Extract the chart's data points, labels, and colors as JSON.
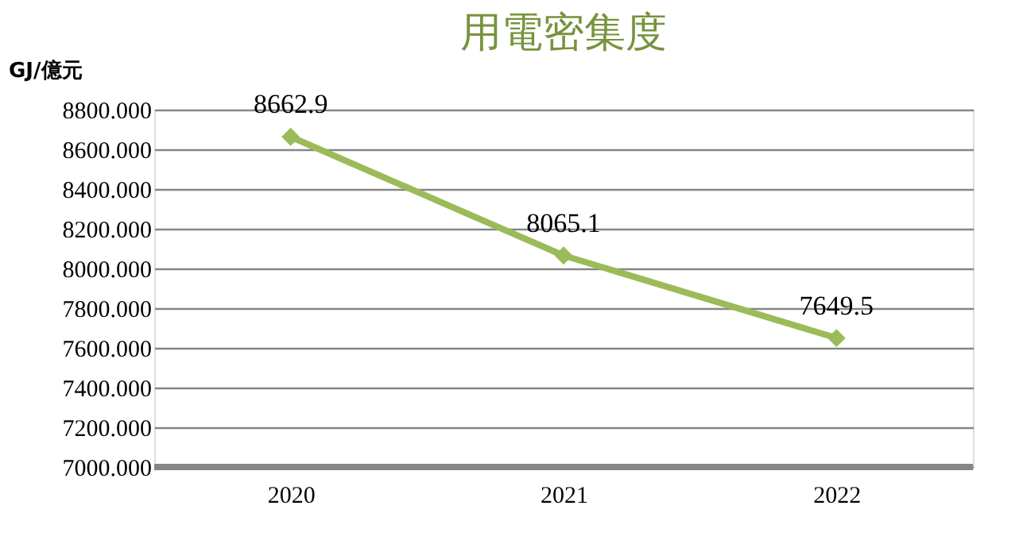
{
  "chart_data": {
    "type": "line",
    "title": "用電密集度",
    "ylabel": "GJ/億元",
    "categories": [
      "2020",
      "2021",
      "2022"
    ],
    "series": [
      {
        "color": "#9bbb59",
        "values": [
          8662.9,
          8065.1,
          7649.5
        ]
      }
    ],
    "ylim": [
      7000,
      8800
    ],
    "yticks": [
      {
        "value": 7000,
        "label": "7000.000"
      },
      {
        "value": 7200,
        "label": "7200.000"
      },
      {
        "value": 7400,
        "label": "7400.000"
      },
      {
        "value": 7600,
        "label": "7600.000"
      },
      {
        "value": 7800,
        "label": "7800.000"
      },
      {
        "value": 8000,
        "label": "8000.000"
      },
      {
        "value": 8200,
        "label": "8200.000"
      },
      {
        "value": 8400,
        "label": "8400.000"
      },
      {
        "value": 8600,
        "label": "8600.000"
      },
      {
        "value": 8800,
        "label": "8800.000"
      }
    ],
    "grid": "y",
    "marker": "diamond",
    "line_style": "solid",
    "data_labels": true
  }
}
